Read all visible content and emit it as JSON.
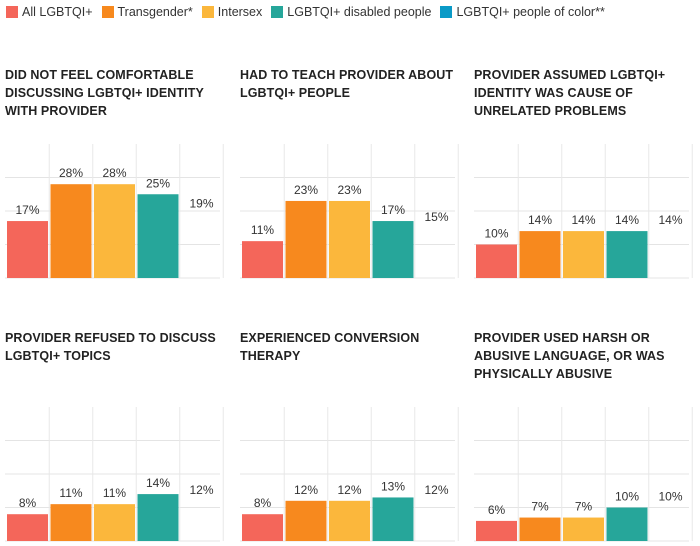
{
  "chart_data": {
    "type": "bar",
    "series": [
      {
        "name": "All LGBTQI+",
        "color": "#f4665a"
      },
      {
        "name": "Transgender*",
        "color": "#f7891e"
      },
      {
        "name": "Intersex",
        "color": "#fbb73c"
      },
      {
        "name": "LGBTQI+ disabled people",
        "color": "#26a69a"
      },
      {
        "name": "LGBTQI+ people of color**",
        "color": "#0a9ac7"
      }
    ],
    "ylim": [
      0,
      40
    ],
    "grid": true,
    "legend_position": "top",
    "panels": [
      {
        "title": "DID NOT FEEL COMFORTABLE DISCUSSING LGBTQI+ IDENTITY WITH PROVIDER",
        "values": [
          17,
          28,
          28,
          25,
          19
        ],
        "labels": [
          "17%",
          "28%",
          "28%",
          "25%",
          "19%"
        ]
      },
      {
        "title": "HAD TO TEACH PROVIDER ABOUT LGBTQI+ PEOPLE",
        "values": [
          11,
          23,
          23,
          17,
          15
        ],
        "labels": [
          "11%",
          "23%",
          "23%",
          "17%",
          "15%"
        ]
      },
      {
        "title": "PROVIDER ASSUMED LGBTQI+ IDENTITY WAS CAUSE OF UNRELATED PROBLEMS",
        "values": [
          10,
          14,
          14,
          14,
          14
        ],
        "labels": [
          "10%",
          "14%",
          "14%",
          "14%",
          "14%"
        ]
      },
      {
        "title": "PROVIDER REFUSED TO DISCUSS LGBTQI+ TOPICS",
        "values": [
          8,
          11,
          11,
          14,
          12
        ],
        "labels": [
          "8%",
          "11%",
          "11%",
          "14%",
          "12%"
        ]
      },
      {
        "title": "EXPERIENCED CONVERSION THERAPY",
        "values": [
          8,
          12,
          12,
          13,
          12
        ],
        "labels": [
          "8%",
          "12%",
          "12%",
          "13%",
          "12%"
        ]
      },
      {
        "title": "PROVIDER USED HARSH OR ABUSIVE LANGUAGE, OR WAS PHYSICALLY ABUSIVE",
        "values": [
          6,
          7,
          7,
          10,
          10
        ],
        "labels": [
          "6%",
          "7%",
          "7%",
          "10%",
          "10%"
        ]
      }
    ]
  }
}
